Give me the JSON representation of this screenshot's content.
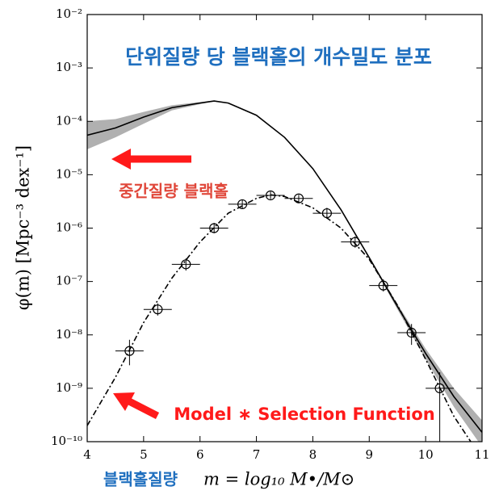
{
  "chart_data": {
    "type": "line",
    "title": "단위질량 당 블랙홀의 개수밀도 분포",
    "annotations": [
      "중간질량 블랙홀",
      "Model ∗ Selection Function"
    ],
    "x_label_prefix": "블랙홀질량",
    "x_label": "m = log₁₀ M•/M⊙",
    "y_label": "φ(m)  [Mpc⁻³ dex⁻¹]",
    "log_y": true,
    "xlim": [
      4,
      11
    ],
    "xticks": [
      4,
      5,
      6,
      7,
      8,
      9,
      10,
      11
    ],
    "ylim": [
      1e-10,
      0.01
    ],
    "yticks": [
      {
        "value": 1e-10,
        "label": "10⁻¹⁰"
      },
      {
        "value": 1e-09,
        "label": "10⁻⁹"
      },
      {
        "value": 1e-08,
        "label": "10⁻⁸"
      },
      {
        "value": 1e-07,
        "label": "10⁻⁷"
      },
      {
        "value": 1e-06,
        "label": "10⁻⁶"
      },
      {
        "value": 1e-05,
        "label": "10⁻⁵"
      },
      {
        "value": 0.0001,
        "label": "10⁻⁴"
      },
      {
        "value": 0.001,
        "label": "10⁻³"
      },
      {
        "value": 0.01,
        "label": "10⁻²"
      }
    ],
    "lines": [
      {
        "color": "#000000",
        "dashed": false,
        "band_color": "#b0b0b0",
        "x": [
          4,
          4.5,
          5,
          5.5,
          6,
          6.25,
          6.5,
          7,
          7.5,
          8,
          8.5,
          9,
          9.5,
          10,
          10.5,
          11
        ],
        "values": [
          5.5e-05,
          7.5e-05,
          0.00012,
          0.00018,
          0.00022,
          0.00024,
          0.00022,
          0.00013,
          5e-05,
          1.3e-05,
          2.2e-06,
          2.8e-07,
          3.4e-08,
          4.5e-09,
          7e-10,
          1.5e-10
        ],
        "band_low": [
          3e-05,
          5e-05,
          9e-05,
          0.00016,
          0.00021,
          0.000235,
          0.000215,
          0.00013,
          5e-05,
          1.3e-05,
          2.2e-06,
          2.7e-07,
          3e-08,
          3.5e-09,
          4.5e-10,
          8e-11
        ],
        "band_high": [
          0.0001,
          0.00011,
          0.00015,
          0.0002,
          0.00023,
          0.000245,
          0.000225,
          0.00013,
          5e-05,
          1.3e-05,
          2.2e-06,
          2.9e-07,
          3.8e-08,
          5.5e-09,
          1e-09,
          2.5e-10
        ]
      },
      {
        "color": "#000000",
        "dashed": true,
        "x": [
          4,
          4.5,
          5,
          5.5,
          6,
          6.5,
          7,
          7.25,
          7.5,
          8,
          8.5,
          9,
          9.5,
          10,
          10.5,
          10.8
        ],
        "values": [
          2e-10,
          1.6e-09,
          1.7e-08,
          1.15e-07,
          5.5e-07,
          1.9e-06,
          3.6e-06,
          4.2e-06,
          3.9e-06,
          2.4e-06,
          1e-06,
          2.6e-07,
          3.6e-08,
          3.5e-09,
          3e-10,
          1e-10
        ]
      }
    ],
    "points": {
      "color": "#000000",
      "x": [
        4.75,
        5.25,
        5.75,
        6.25,
        6.75,
        7.25,
        7.75,
        8.25,
        8.75,
        9.25,
        9.75,
        10.25
      ],
      "values": [
        5e-09,
        3e-08,
        2.1e-07,
        1e-06,
        2.8e-06,
        4.1e-06,
        3.6e-06,
        1.9e-06,
        5.5e-07,
        8.4e-08,
        1.1e-08,
        1e-09
      ],
      "xerr": [
        0.25,
        0.25,
        0.25,
        0.25,
        0.25,
        0.25,
        0.25,
        0.25,
        0.25,
        0.25,
        0.25,
        0.25
      ],
      "ylow": [
        2.7e-09,
        2.3e-08,
        1.6e-07,
        8e-07,
        2.3e-06,
        3.5e-06,
        3.1e-06,
        1.5e-06,
        4.3e-07,
        6.5e-08,
        6.5e-09,
        1e-10
      ],
      "yhigh": [
        8.1e-09,
        3.9e-08,
        2.7e-07,
        1.25e-06,
        3.4e-06,
        4.8e-06,
        4.2e-06,
        2.4e-06,
        7e-07,
        1.1e-07,
        1.6e-08,
        2e-09
      ]
    }
  }
}
